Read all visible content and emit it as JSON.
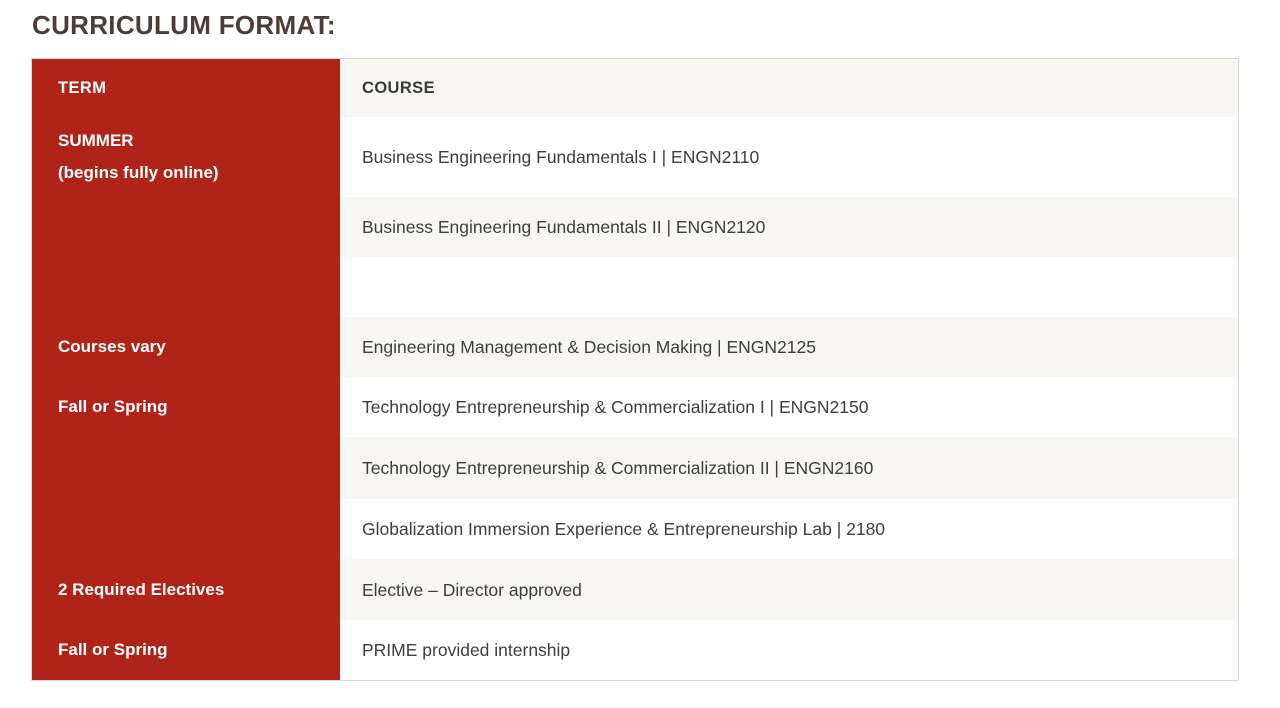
{
  "title": "CURRICULUM FORMAT:",
  "colors": {
    "term_column_bg": "#b02318",
    "stripe_row_bg": "#f7f6f3",
    "table_border": "#dbd8cf",
    "title_text": "#4c3e34",
    "body_text": "#3e3e3e"
  },
  "table": {
    "header": {
      "term": "TERM",
      "course": "COURSE"
    },
    "rows": [
      {
        "term": "SUMMER",
        "term_note": "(begins fully online)",
        "course": "Business Engineering Fundamentals I | ENGN2110"
      },
      {
        "term": "",
        "course": "Business Engineering Fundamentals II | ENGN2120"
      },
      {
        "term": "",
        "course": ""
      },
      {
        "term": "Courses vary",
        "course": "Engineering Management & Decision Making | ENGN2125"
      },
      {
        "term": "Fall or Spring",
        "course": "Technology Entrepreneurship & Commercialization I | ENGN2150"
      },
      {
        "term": "",
        "course": "Technology Entrepreneurship & Commercialization II | ENGN2160"
      },
      {
        "term": "",
        "course": "Globalization Immersion Experience & Entrepreneurship Lab | 2180"
      },
      {
        "term": "2 Required Electives",
        "course": "Elective – Director approved"
      },
      {
        "term": "Fall or Spring",
        "course": "PRIME provided internship"
      }
    ]
  }
}
